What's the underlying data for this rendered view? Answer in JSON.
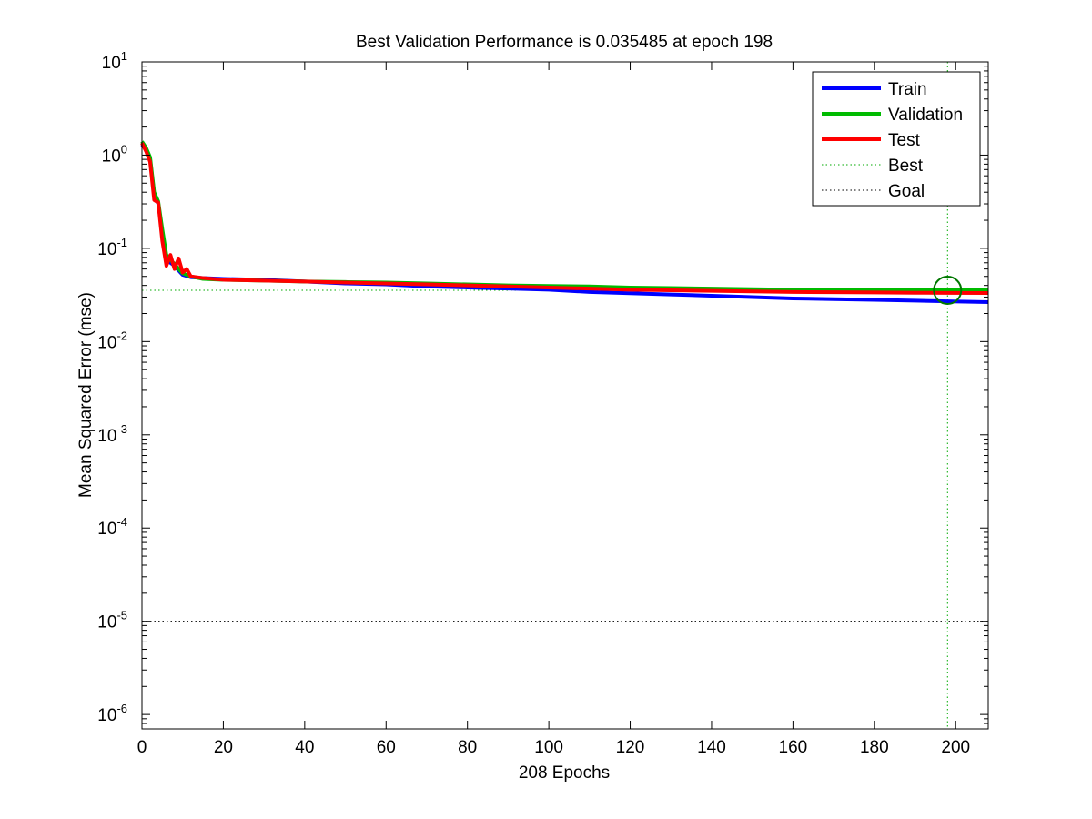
{
  "figure": {
    "title": "Best Validation Performance is 0.035485 at epoch 198"
  },
  "chart_data": {
    "type": "line",
    "title": "Best Validation Performance is 0.035485 at epoch 198",
    "xlabel": "208 Epochs",
    "ylabel": "Mean Squared Error  (mse)",
    "y_scale": "log",
    "xlim": [
      0,
      208
    ],
    "ylim": [
      7e-07,
      10
    ],
    "xticks": [
      0,
      20,
      40,
      60,
      80,
      100,
      120,
      140,
      160,
      180,
      200
    ],
    "yticks": [
      {
        "value": 1e-06,
        "base": "10",
        "exp": "-6"
      },
      {
        "value": 1e-05,
        "base": "10",
        "exp": "-5"
      },
      {
        "value": 0.0001,
        "base": "10",
        "exp": "-4"
      },
      {
        "value": 0.001,
        "base": "10",
        "exp": "-3"
      },
      {
        "value": 0.01,
        "base": "10",
        "exp": "-2"
      },
      {
        "value": 0.1,
        "base": "10",
        "exp": "-1"
      },
      {
        "value": 1,
        "base": "10",
        "exp": "0"
      },
      {
        "value": 10,
        "base": "10",
        "exp": "1"
      }
    ],
    "grid": false,
    "legend_position": "top-right",
    "series": [
      {
        "name": "Train",
        "color": "#0000ff",
        "style": "solid",
        "points": [
          [
            0,
            1.3
          ],
          [
            1,
            1.15
          ],
          [
            2,
            0.9
          ],
          [
            3,
            0.38
          ],
          [
            4,
            0.3
          ],
          [
            5,
            0.15
          ],
          [
            6,
            0.08
          ],
          [
            7,
            0.07
          ],
          [
            8,
            0.065
          ],
          [
            9,
            0.058
          ],
          [
            10,
            0.052
          ],
          [
            12,
            0.049
          ],
          [
            15,
            0.048
          ],
          [
            20,
            0.047
          ],
          [
            30,
            0.046
          ],
          [
            40,
            0.044
          ],
          [
            50,
            0.042
          ],
          [
            60,
            0.041
          ],
          [
            70,
            0.039
          ],
          [
            80,
            0.038
          ],
          [
            90,
            0.037
          ],
          [
            100,
            0.036
          ],
          [
            110,
            0.034
          ],
          [
            120,
            0.033
          ],
          [
            130,
            0.032
          ],
          [
            140,
            0.031
          ],
          [
            150,
            0.03
          ],
          [
            160,
            0.029
          ],
          [
            170,
            0.0285
          ],
          [
            180,
            0.028
          ],
          [
            190,
            0.0275
          ],
          [
            198,
            0.027
          ],
          [
            208,
            0.0265
          ]
        ]
      },
      {
        "name": "Validation",
        "color": "#00bb00",
        "style": "solid",
        "points": [
          [
            0,
            1.4
          ],
          [
            1,
            1.2
          ],
          [
            2,
            0.95
          ],
          [
            3,
            0.4
          ],
          [
            4,
            0.32
          ],
          [
            5,
            0.16
          ],
          [
            6,
            0.085
          ],
          [
            7,
            0.075
          ],
          [
            8,
            0.068
          ],
          [
            9,
            0.06
          ],
          [
            10,
            0.054
          ],
          [
            12,
            0.05
          ],
          [
            15,
            0.047
          ],
          [
            20,
            0.046
          ],
          [
            30,
            0.045
          ],
          [
            40,
            0.044
          ],
          [
            50,
            0.0435
          ],
          [
            60,
            0.043
          ],
          [
            70,
            0.042
          ],
          [
            80,
            0.041
          ],
          [
            90,
            0.04
          ],
          [
            100,
            0.0395
          ],
          [
            110,
            0.039
          ],
          [
            120,
            0.038
          ],
          [
            130,
            0.0375
          ],
          [
            140,
            0.037
          ],
          [
            150,
            0.0365
          ],
          [
            160,
            0.036
          ],
          [
            170,
            0.0358
          ],
          [
            180,
            0.0357
          ],
          [
            190,
            0.0356
          ],
          [
            198,
            0.035485
          ],
          [
            208,
            0.0357
          ]
        ]
      },
      {
        "name": "Test",
        "color": "#ff0000",
        "style": "solid",
        "points": [
          [
            0,
            1.35
          ],
          [
            1,
            1.1
          ],
          [
            2,
            0.85
          ],
          [
            3,
            0.33
          ],
          [
            4,
            0.31
          ],
          [
            5,
            0.12
          ],
          [
            6,
            0.065
          ],
          [
            7,
            0.085
          ],
          [
            8,
            0.06
          ],
          [
            9,
            0.078
          ],
          [
            10,
            0.055
          ],
          [
            11,
            0.06
          ],
          [
            12,
            0.05
          ],
          [
            15,
            0.048
          ],
          [
            20,
            0.046
          ],
          [
            30,
            0.045
          ],
          [
            40,
            0.044
          ],
          [
            50,
            0.043
          ],
          [
            60,
            0.042
          ],
          [
            70,
            0.041
          ],
          [
            80,
            0.04
          ],
          [
            90,
            0.039
          ],
          [
            100,
            0.038
          ],
          [
            110,
            0.037
          ],
          [
            120,
            0.036
          ],
          [
            130,
            0.0355
          ],
          [
            140,
            0.035
          ],
          [
            150,
            0.0345
          ],
          [
            160,
            0.034
          ],
          [
            170,
            0.0338
          ],
          [
            180,
            0.0336
          ],
          [
            190,
            0.0334
          ],
          [
            198,
            0.0333
          ],
          [
            208,
            0.0332
          ]
        ]
      }
    ],
    "reference_lines": [
      {
        "name": "Best",
        "color": "#00aa00",
        "style": "dotted",
        "orientation": "vertical",
        "x": 198
      },
      {
        "name": "Best",
        "color": "#00aa00",
        "style": "dotted",
        "orientation": "horizontal",
        "y": 0.035485
      },
      {
        "name": "Goal",
        "color": "#000000",
        "style": "dotted",
        "orientation": "horizontal",
        "y": 1e-05
      }
    ],
    "best_marker": {
      "x": 198,
      "y": 0.035485,
      "color": "#007700",
      "shape": "circle"
    },
    "legend": [
      {
        "label": "Train",
        "color": "#0000ff",
        "style": "solid"
      },
      {
        "label": "Validation",
        "color": "#00bb00",
        "style": "solid"
      },
      {
        "label": "Test",
        "color": "#ff0000",
        "style": "solid"
      },
      {
        "label": "Best",
        "color": "#00aa00",
        "style": "dotted"
      },
      {
        "label": "Goal",
        "color": "#000000",
        "style": "dotted"
      }
    ]
  }
}
